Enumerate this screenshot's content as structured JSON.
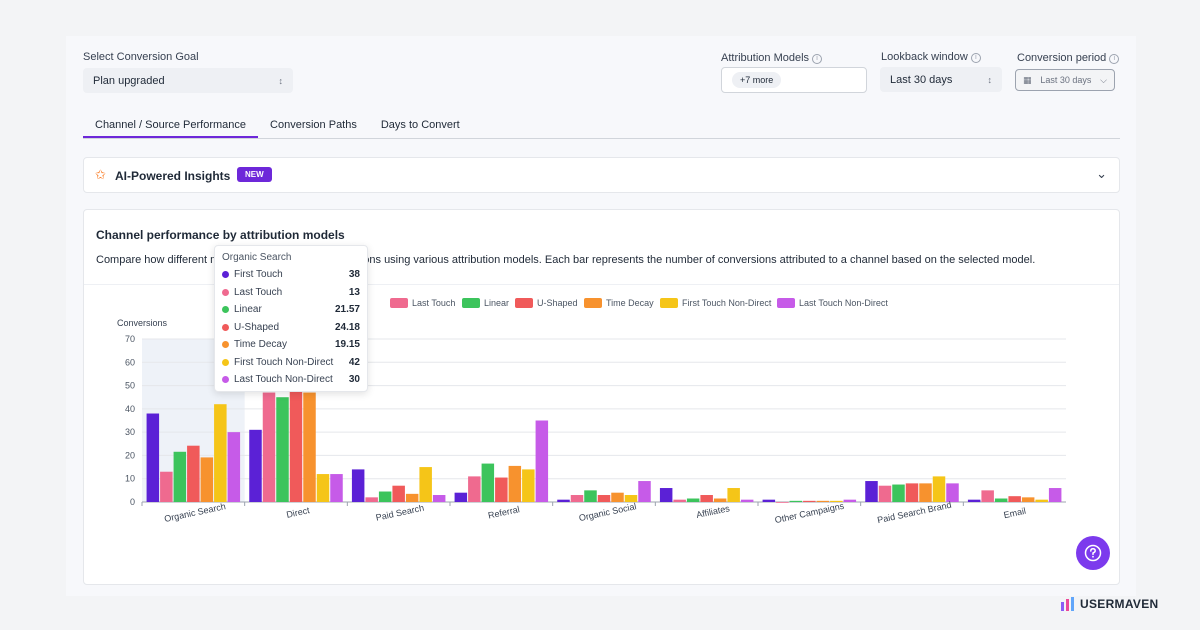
{
  "filters": {
    "goal_label": "Select Conversion Goal",
    "goal_value": "Plan upgraded",
    "attribution_label": "Attribution Models",
    "attribution_value": "+7 more",
    "lookback_label": "Lookback window",
    "lookback_value": "Last 30 days",
    "period_label": "Conversion period",
    "period_value": "Last 30 days"
  },
  "tabs": [
    "Channel / Source Performance",
    "Conversion Paths",
    "Days to Convert"
  ],
  "insights": {
    "title": "AI-Powered Insights",
    "badge": "NEW"
  },
  "chart_card": {
    "title": "Channel performance by attribution models",
    "desc_start": "Compare how different m",
    "desc_end": "conversions using various attribution models. Each bar represents the number of conversions attributed to a channel based on the selected model."
  },
  "legend_visible": [
    "uch",
    "Last Touch",
    "Linear",
    "U-Shaped",
    "Time Decay",
    "First Touch Non-Direct",
    "Last Touch Non-Direct"
  ],
  "chart_data": {
    "type": "bar",
    "ylabel": "Conversions",
    "ylim": [
      0,
      70
    ],
    "yticks": [
      0,
      10,
      20,
      30,
      40,
      50,
      60,
      70
    ],
    "grid": true,
    "categories": [
      "Organic Search",
      "Direct",
      "Paid Search",
      "Referral",
      "Organic Social",
      "Affiliates",
      "Other Campaigns",
      "Paid Search Brand",
      "Email"
    ],
    "series": [
      {
        "name": "First Touch",
        "color": "#5b21d6",
        "values": [
          38,
          31,
          14,
          4,
          1,
          6,
          1,
          9,
          1
        ]
      },
      {
        "name": "Last Touch",
        "color": "#ef6a8f",
        "values": [
          13,
          47,
          2,
          11,
          3,
          1,
          0,
          7,
          5
        ]
      },
      {
        "name": "Linear",
        "color": "#3cc45c",
        "values": [
          21.57,
          45,
          4.5,
          16.5,
          5,
          1.5,
          0.5,
          7.5,
          1.5
        ]
      },
      {
        "name": "U-Shaped",
        "color": "#f05a5a",
        "values": [
          24.18,
          48,
          7,
          10.5,
          3,
          3,
          0.5,
          8,
          2.5
        ]
      },
      {
        "name": "Time Decay",
        "color": "#f7922e",
        "values": [
          19.15,
          47,
          3.5,
          15.5,
          4,
          1.5,
          0.5,
          8,
          2
        ]
      },
      {
        "name": "First Touch Non-Direct",
        "color": "#f5c518",
        "values": [
          42,
          12,
          15,
          14,
          3,
          6,
          0.5,
          11,
          1
        ]
      },
      {
        "name": "Last Touch Non-Direct",
        "color": "#c65be8",
        "values": [
          30,
          12,
          3,
          35,
          9,
          1,
          1,
          8,
          6
        ]
      }
    ]
  },
  "tooltip": {
    "title": "Organic Search",
    "rows": [
      {
        "name": "First Touch",
        "value": "38",
        "color": "#5b21d6"
      },
      {
        "name": "Last Touch",
        "value": "13",
        "color": "#ef6a8f"
      },
      {
        "name": "Linear",
        "value": "21.57",
        "color": "#3cc45c"
      },
      {
        "name": "U-Shaped",
        "value": "24.18",
        "color": "#f05a5a"
      },
      {
        "name": "Time Decay",
        "value": "19.15",
        "color": "#f7922e"
      },
      {
        "name": "First Touch Non-Direct",
        "value": "42",
        "color": "#f5c518"
      },
      {
        "name": "Last Touch Non-Direct",
        "value": "30",
        "color": "#c65be8"
      }
    ]
  },
  "brand": {
    "name": "USERMAVEN"
  }
}
